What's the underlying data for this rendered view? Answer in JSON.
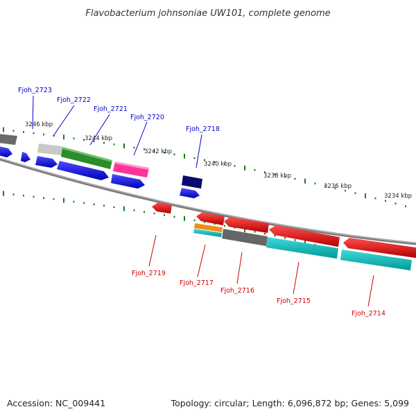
{
  "title": "Flavobacterium johnsoniae UW101, complete genome",
  "footer": {
    "accession": "Accession: NC_009441",
    "summary": "Topology: circular; Length: 6,096,872 bp; Genes: 5,099"
  },
  "colors": {
    "forward_label": "#0000cc",
    "reverse_label": "#cc0000",
    "backbone": "#888888",
    "tick": "#1a7a1a"
  },
  "kbp_labels": [
    "3246 kbp",
    "3244 kbp",
    "3242 kbp",
    "3240 kbp",
    "3238 kbp",
    "3236 kbp",
    "3234 kbp"
  ],
  "genes_top": [
    {
      "label": "Fjoh_2723"
    },
    {
      "label": "Fjoh_2722"
    },
    {
      "label": "Fjoh_2721"
    },
    {
      "label": "Fjoh_2720"
    },
    {
      "label": "Fjoh_2718"
    }
  ],
  "genes_bottom": [
    {
      "label": "Fjoh_2719"
    },
    {
      "label": "Fjoh_2717"
    },
    {
      "label": "Fjoh_2716"
    },
    {
      "label": "Fjoh_2715"
    },
    {
      "label": "Fjoh_2714"
    }
  ]
}
